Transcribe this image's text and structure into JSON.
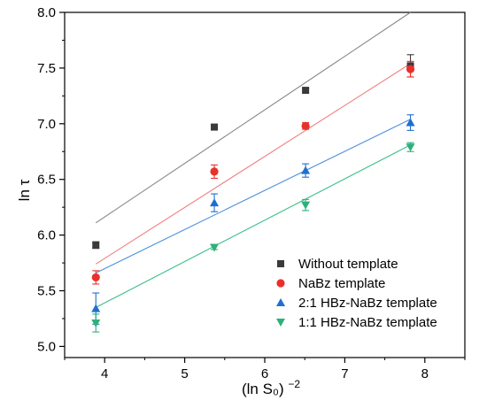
{
  "chart_data": {
    "type": "scatter",
    "xlabel": "(ln S₀)",
    "xlabel_superscript": "−2",
    "ylabel": "ln τ",
    "xlim": [
      3.5,
      8.5
    ],
    "ylim": [
      4.9,
      8.0
    ],
    "xticks": [
      4,
      5,
      6,
      7,
      8
    ],
    "yticks": [
      5.0,
      5.5,
      6.0,
      6.5,
      7.0,
      7.5,
      8.0
    ],
    "xtick_labels": [
      "4",
      "5",
      "6",
      "7",
      "8"
    ],
    "ytick_labels": [
      "5.0",
      "5.5",
      "6.0",
      "6.5",
      "7.0",
      "7.5",
      "8.0"
    ],
    "grid": false,
    "legend_position": "bottom-right",
    "series": [
      {
        "name": "Without template",
        "marker": "square",
        "color": "#3a3a3a",
        "line_color": "#888888",
        "x": [
          3.89,
          5.37,
          6.51,
          7.82
        ],
        "y": [
          5.91,
          6.97,
          7.3,
          7.52
        ],
        "yerr": [
          0.03,
          0.02,
          0.02,
          0.1
        ],
        "fit": {
          "x": [
            3.89,
            7.82
          ],
          "y": [
            6.11,
            8.0
          ]
        }
      },
      {
        "name": "NaBz template",
        "marker": "circle",
        "color": "#e8312a",
        "line_color": "#f08080",
        "x": [
          3.89,
          5.37,
          6.51,
          7.82
        ],
        "y": [
          5.62,
          6.57,
          6.98,
          7.49
        ],
        "yerr": [
          0.06,
          0.06,
          0.03,
          0.07
        ],
        "fit": {
          "x": [
            3.89,
            7.82
          ],
          "y": [
            5.74,
            7.54
          ]
        }
      },
      {
        "name": "2:1 HBz-NaBz template",
        "marker": "triangle-up",
        "color": "#1f6fd0",
        "line_color": "#4f8fe0",
        "x": [
          3.89,
          5.37,
          6.51,
          7.82
        ],
        "y": [
          5.34,
          6.29,
          6.58,
          7.01
        ],
        "yerr": [
          0.14,
          0.08,
          0.06,
          0.07
        ],
        "fit": {
          "x": [
            3.89,
            7.82
          ],
          "y": [
            5.66,
            7.04
          ]
        }
      },
      {
        "name": "1:1 HBz-NaBz template",
        "marker": "triangle-down",
        "color": "#2fb07a",
        "line_color": "#3cbf88",
        "x": [
          3.89,
          5.37,
          6.51,
          7.82
        ],
        "y": [
          5.21,
          5.89,
          6.27,
          6.79
        ],
        "yerr": [
          0.08,
          0.02,
          0.05,
          0.04
        ],
        "fit": {
          "x": [
            3.89,
            7.82
          ],
          "y": [
            5.35,
            6.81
          ]
        }
      }
    ]
  }
}
